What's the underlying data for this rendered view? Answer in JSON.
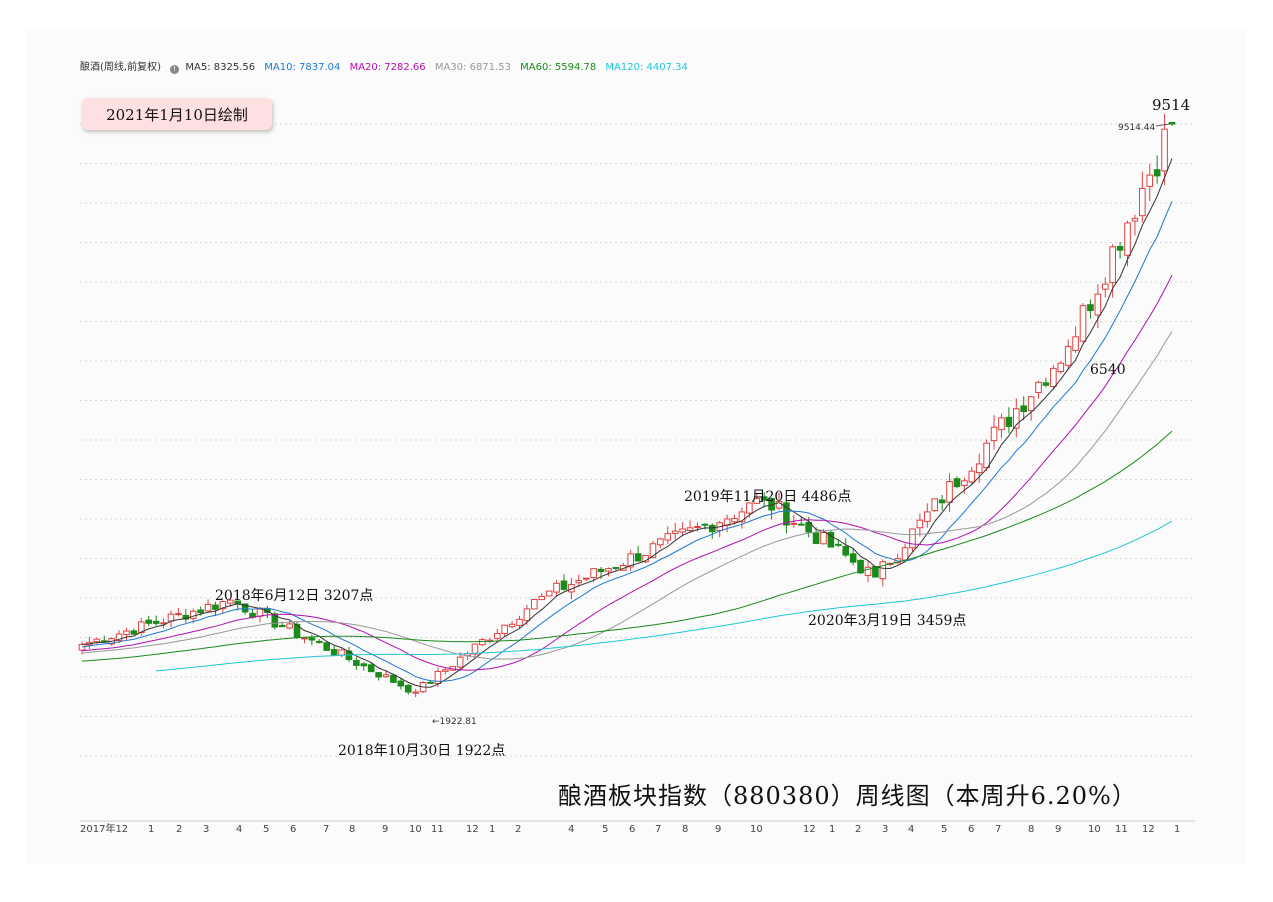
{
  "header": {
    "legend_name": "酿酒(周线,前复权)",
    "info_icon": "info-icon",
    "ma": [
      {
        "label": "MA5: 8325.56",
        "color": "#333333"
      },
      {
        "label": "MA10: 7837.04",
        "color": "#1f78d1"
      },
      {
        "label": "MA20: 7282.66",
        "color": "#b010b0"
      },
      {
        "label": "MA30: 6871.53",
        "color": "#999999"
      },
      {
        "label": "MA60: 5594.78",
        "color": "#1a8a1a"
      },
      {
        "label": "MA120: 4407.34",
        "color": "#20c8d8"
      }
    ]
  },
  "date_badge": "2021年1月10日绘制",
  "annotations": {
    "peak_label": "9514",
    "peak_value_small": "9514.44",
    "pullback_label": "6540",
    "high_2019": "2019年11月20日 4486点",
    "high_2018": "2018年6月12日 3207点",
    "low_2020": "2020年3月19日 3459点",
    "low_2018": "2018年10月30日 1922点",
    "low_value_small": "1922.81"
  },
  "title": "酿酒板块指数（880380）周线图（本周升6.20%）",
  "colors": {
    "up": "#e04040",
    "down": "#1a8a1a",
    "grid": "#d8d8d8"
  },
  "chart_data": {
    "type": "candlestick",
    "title": "酿酒板块指数（880380）周线图（本周升6.20%）",
    "xlabel": "",
    "ylabel": "",
    "ylim": [
      1500,
      10000
    ],
    "grid": true,
    "x_tick_labels": [
      "2017年12",
      "1",
      "2",
      "3",
      "4",
      "5",
      "6",
      "7",
      "8",
      "9",
      "10",
      "11",
      "12",
      "1",
      "2",
      "4",
      "5",
      "6",
      "7",
      "8",
      "9",
      "10",
      "12",
      "1",
      "2",
      "3",
      "4",
      "5",
      "6",
      "7",
      "8",
      "9",
      "10",
      "11",
      "12",
      "1"
    ],
    "anchor_points": [
      {
        "x": 0,
        "close": 2560
      },
      {
        "x": 20,
        "close": 3150,
        "note": "2018年6月12日 3207点"
      },
      {
        "x": 45,
        "close": 1922.81,
        "note": "2018年10月30日 1922点"
      },
      {
        "x": 62,
        "close": 3200
      },
      {
        "x": 92,
        "close": 4486,
        "note": "2019年11月20日 4486点"
      },
      {
        "x": 107,
        "close": 3459,
        "note": "2020年3月19日 3459点"
      },
      {
        "x": 133,
        "close": 6540
      },
      {
        "x": 147,
        "close": 9514.44
      }
    ],
    "series": [
      {
        "name": "MA5",
        "last": 8325.56
      },
      {
        "name": "MA10",
        "last": 7837.04
      },
      {
        "name": "MA20",
        "last": 7282.66
      },
      {
        "name": "MA30",
        "last": 6871.53
      },
      {
        "name": "MA60",
        "last": 5594.78
      },
      {
        "name": "MA120",
        "last": 4407.34
      }
    ]
  }
}
